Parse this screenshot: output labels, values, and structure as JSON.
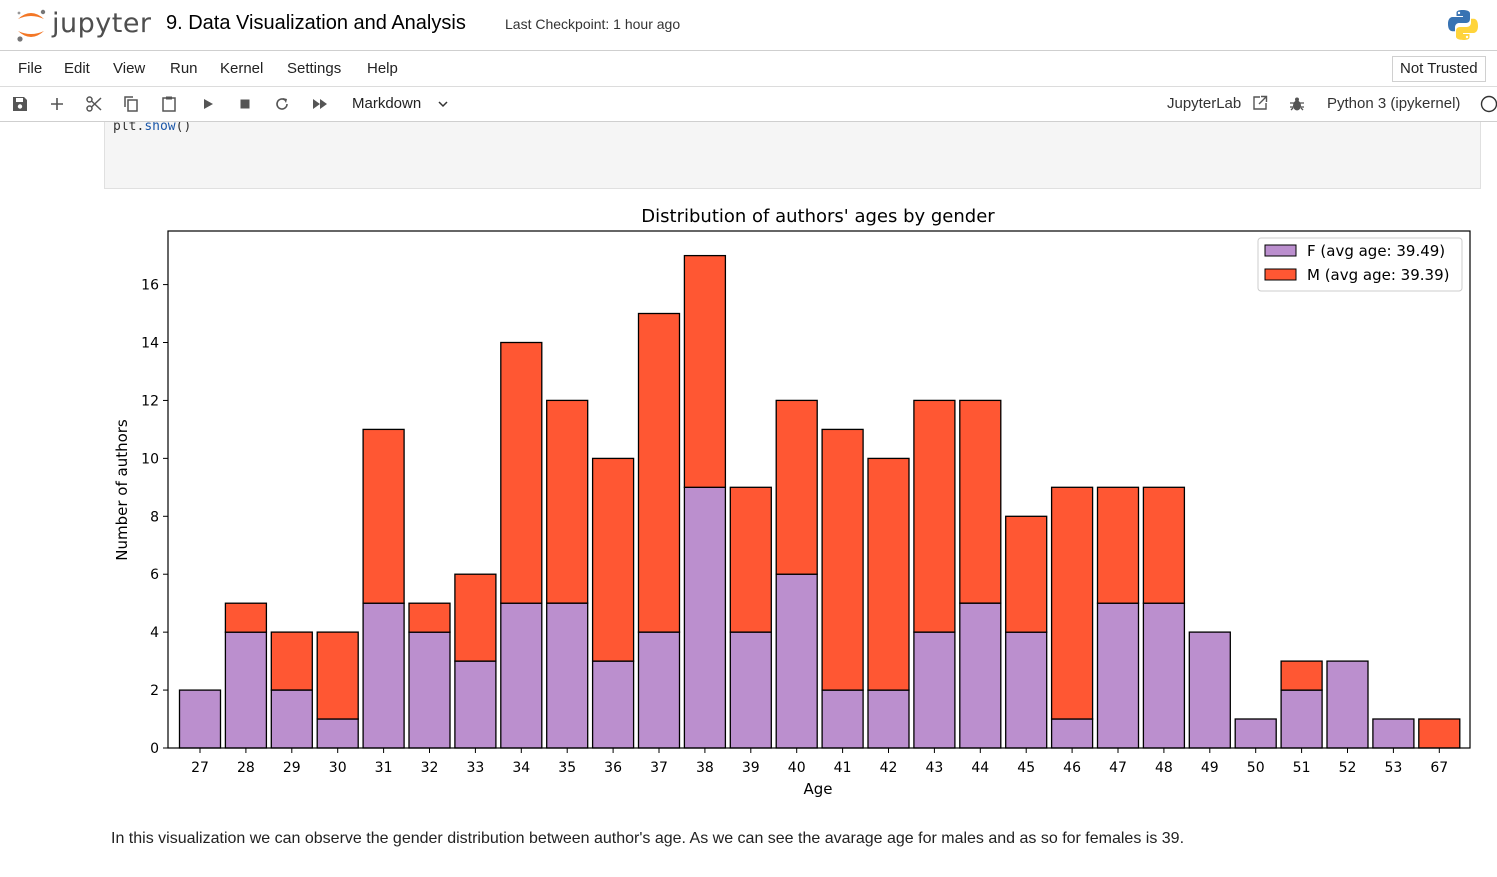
{
  "header": {
    "logo_text": "jupyter",
    "notebook_title": "9. Data Visualization and Analysis",
    "checkpoint": "Last Checkpoint: 1 hour ago"
  },
  "menubar": {
    "items": [
      "File",
      "Edit",
      "View",
      "Run",
      "Kernel",
      "Settings",
      "Help"
    ],
    "trust_status": "Not Trusted"
  },
  "toolbar": {
    "icons": [
      "save-icon",
      "add-cell-icon",
      "cut-icon",
      "copy-icon",
      "paste-icon",
      "run-icon",
      "stop-icon",
      "restart-icon",
      "fast-forward-icon"
    ],
    "cell_type": "Markdown",
    "jupyterlab_label": "JupyterLab",
    "kernel_name": "Python 3 (ipykernel)"
  },
  "code_cell": {
    "prefix": "plt.",
    "fn": "show",
    "suffix": "()"
  },
  "chart_data": {
    "type": "bar",
    "stacked": true,
    "title": "Distribution of authors' ages by gender",
    "xlabel": "Age",
    "ylabel": "Number of authors",
    "categories": [
      "27",
      "28",
      "29",
      "30",
      "31",
      "32",
      "33",
      "34",
      "35",
      "36",
      "37",
      "38",
      "39",
      "40",
      "41",
      "42",
      "43",
      "44",
      "45",
      "46",
      "47",
      "48",
      "49",
      "50",
      "51",
      "52",
      "53",
      "67"
    ],
    "ylim": [
      0,
      17.85
    ],
    "yticks": [
      0,
      2,
      4,
      6,
      8,
      10,
      12,
      14,
      16
    ],
    "series": [
      {
        "name": "F (avg age: 39.49)",
        "color": "#bb8fce",
        "values": [
          2,
          4,
          2,
          1,
          5,
          4,
          3,
          5,
          5,
          3,
          4,
          9,
          4,
          6,
          2,
          2,
          4,
          5,
          4,
          1,
          5,
          5,
          4,
          1,
          2,
          3,
          1,
          0
        ]
      },
      {
        "name": "M (avg age: 39.39)",
        "color": "#ff5733",
        "values": [
          0,
          1,
          2,
          3,
          6,
          1,
          3,
          9,
          7,
          7,
          11,
          8,
          5,
          6,
          9,
          8,
          8,
          7,
          4,
          8,
          4,
          4,
          0,
          0,
          1,
          0,
          0,
          1
        ]
      }
    ],
    "legend_position": "top-right",
    "grid": false
  },
  "markdown": {
    "text": "In this visualization we can observe the gender distribution between author's age. As we can see the avarage age for males and as so for females is 39."
  }
}
